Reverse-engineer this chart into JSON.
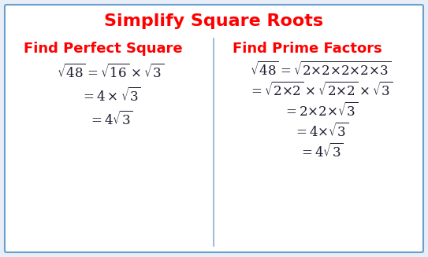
{
  "title": "Simplify Square Roots",
  "title_color": "#FF0000",
  "title_fontsize": 16,
  "bg_color": "#E8EEF8",
  "box_color": "#FFFFFF",
  "border_color": "#6A9FCC",
  "divider_color": "#8AB0D0",
  "red_color": "#FF0000",
  "black_color": "#1A1A2E",
  "left_header": "Find Perfect Square",
  "right_header": "Find Prime Factors",
  "header_fontsize": 13,
  "math_fontsize": 12
}
